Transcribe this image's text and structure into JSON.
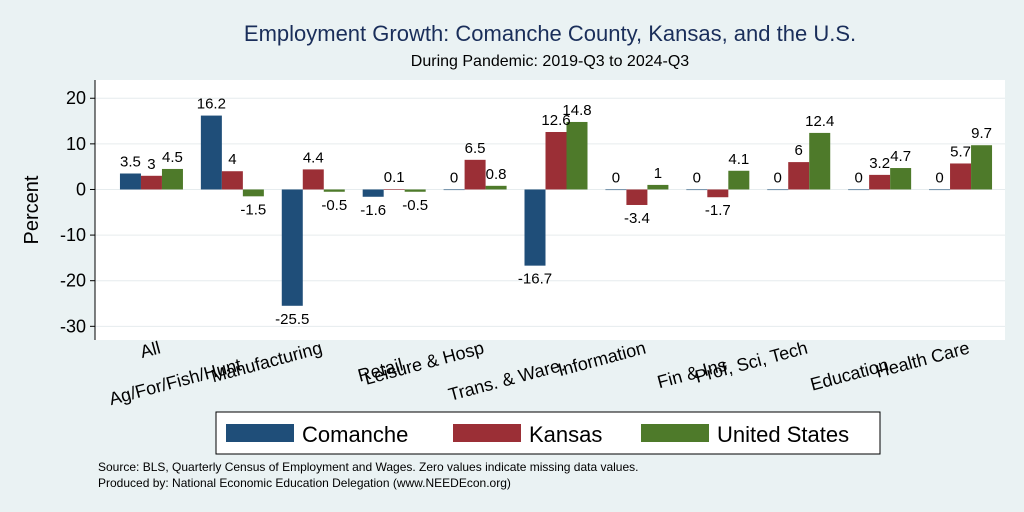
{
  "chart_data": {
    "type": "bar",
    "title": "Employment Growth: Comanche County, Kansas, and the U.S.",
    "subtitle": "During Pandemic: 2019-Q3 to 2024-Q3",
    "xlabel": "",
    "ylabel": "Percent",
    "ylim": [
      -33,
      24
    ],
    "yticks": [
      20,
      10,
      0,
      -10,
      -20,
      -30
    ],
    "grid": true,
    "categories": [
      "All",
      "Ag/For/Fish/Hunt",
      "Manufacturing",
      "Retail",
      "Leisure & Hosp",
      "Trans. & Ware.",
      "Information",
      "Fin & Ins",
      "Prof, Sci, Tech",
      "Education",
      "Health Care"
    ],
    "series": [
      {
        "name": "Comanche",
        "color": "#1F4E79",
        "values": [
          3.5,
          16.2,
          -25.5,
          -1.6,
          0.0,
          -16.7,
          0.0,
          0.0,
          0.0,
          0.0,
          0.0
        ]
      },
      {
        "name": "Kansas",
        "color": "#9B2F36",
        "values": [
          3.0,
          4.0,
          4.4,
          0.1,
          6.5,
          12.6,
          -3.4,
          -1.7,
          6.0,
          3.2,
          5.7
        ]
      },
      {
        "name": "United States",
        "color": "#4E7A2A",
        "values": [
          4.5,
          -1.5,
          -0.5,
          -0.5,
          0.8,
          14.8,
          1.0,
          4.1,
          12.4,
          4.7,
          9.7
        ]
      }
    ],
    "legend_position": "bottom"
  },
  "notes": {
    "source": "Source: BLS, Quarterly Census of Employment and Wages. Zero values indicate missing data values.",
    "producer": "Produced by: National Economic Education Delegation (www.NEEDEcon.org)"
  }
}
